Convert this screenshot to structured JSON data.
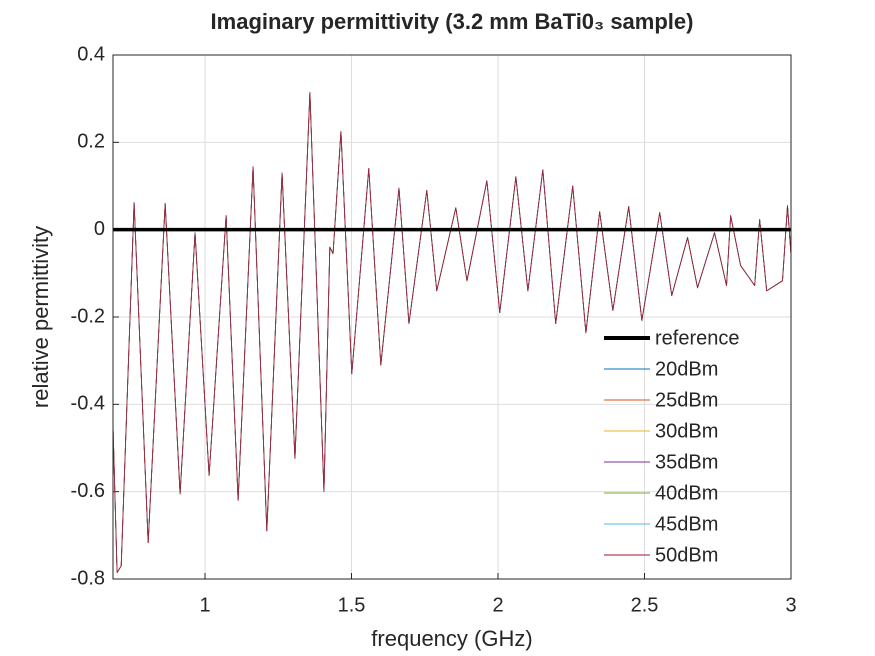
{
  "chart_data": {
    "type": "line",
    "title": "Imaginary permittivity (3.2 mm BaTi0₃ sample)",
    "x_label": "frequency (GHz)",
    "y_label": "relative permittivity",
    "xlim": [
      0.686,
      3
    ],
    "ylim": [
      -0.8,
      0.4
    ],
    "xticks": [
      1,
      1.5,
      2,
      2.5,
      3
    ],
    "yticks": [
      -0.8,
      -0.6,
      -0.4,
      -0.2,
      0,
      0.2,
      0.4
    ],
    "grid": true,
    "legend_position": "lower-right",
    "x": [
      0.686,
      0.7,
      0.714,
      0.758,
      0.806,
      0.864,
      0.915,
      0.966,
      1.014,
      1.072,
      1.113,
      1.164,
      1.211,
      1.263,
      1.307,
      1.334,
      1.358,
      1.406,
      1.426,
      1.437,
      1.464,
      1.501,
      1.559,
      1.6,
      1.662,
      1.696,
      1.757,
      1.791,
      1.856,
      1.894,
      1.962,
      2.006,
      2.061,
      2.102,
      2.153,
      2.197,
      2.255,
      2.3,
      2.347,
      2.392,
      2.446,
      2.491,
      2.552,
      2.593,
      2.647,
      2.681,
      2.739,
      2.78,
      2.794,
      2.828,
      2.876,
      2.893,
      2.917,
      2.971,
      2.988,
      3.0
    ],
    "series": [
      {
        "name": "reference",
        "color": "#000000",
        "width": 3.5,
        "values": [
          0,
          0,
          0,
          0,
          0,
          0,
          0,
          0,
          0,
          0,
          0,
          0,
          0,
          0,
          0,
          0,
          0,
          0,
          0,
          0,
          0,
          0,
          0,
          0,
          0,
          0,
          0,
          0,
          0,
          0,
          0,
          0,
          0,
          0,
          0,
          0,
          0,
          0,
          0,
          0,
          0,
          0,
          0,
          0,
          0,
          0,
          0,
          0,
          0,
          0,
          0,
          0,
          0,
          0,
          0,
          0
        ]
      },
      {
        "name": "20dBm",
        "color": "#0072BD",
        "width": 0.8,
        "values": [
          -0.45,
          -0.785,
          -0.77,
          0.062,
          -0.717,
          0.06,
          -0.605,
          -0.007,
          -0.563,
          0.032,
          -0.62,
          0.144,
          -0.69,
          0.13,
          -0.524,
          -0.08,
          0.314,
          -0.6,
          -0.04,
          -0.055,
          0.225,
          -0.33,
          0.14,
          -0.31,
          0.095,
          -0.215,
          0.09,
          -0.14,
          0.05,
          -0.117,
          0.112,
          -0.19,
          0.121,
          -0.14,
          0.137,
          -0.215,
          0.1,
          -0.236,
          0.041,
          -0.185,
          0.053,
          -0.208,
          0.039,
          -0.151,
          -0.018,
          -0.133,
          -0.007,
          -0.128,
          0.032,
          -0.082,
          -0.128,
          0.023,
          -0.14,
          -0.117,
          0.055,
          -0.057
        ]
      },
      {
        "name": "25dBm",
        "color": "#D95319",
        "width": 0.8,
        "values": [
          -0.45,
          -0.785,
          -0.77,
          0.062,
          -0.717,
          0.06,
          -0.605,
          -0.007,
          -0.563,
          0.032,
          -0.62,
          0.144,
          -0.69,
          0.13,
          -0.524,
          -0.08,
          0.314,
          -0.6,
          -0.04,
          -0.055,
          0.225,
          -0.33,
          0.14,
          -0.31,
          0.095,
          -0.215,
          0.09,
          -0.14,
          0.05,
          -0.117,
          0.112,
          -0.19,
          0.121,
          -0.14,
          0.137,
          -0.215,
          0.1,
          -0.236,
          0.041,
          -0.185,
          0.053,
          -0.208,
          0.039,
          -0.151,
          -0.018,
          -0.133,
          -0.007,
          -0.128,
          0.032,
          -0.082,
          -0.128,
          0.023,
          -0.14,
          -0.117,
          0.055,
          -0.057
        ]
      },
      {
        "name": "30dBm",
        "color": "#EDB120",
        "width": 0.8,
        "values": [
          -0.45,
          -0.785,
          -0.77,
          0.062,
          -0.717,
          0.06,
          -0.605,
          -0.007,
          -0.563,
          0.032,
          -0.62,
          0.144,
          -0.69,
          0.13,
          -0.524,
          -0.08,
          0.314,
          -0.6,
          -0.04,
          -0.055,
          0.225,
          -0.33,
          0.14,
          -0.31,
          0.095,
          -0.215,
          0.09,
          -0.14,
          0.05,
          -0.117,
          0.112,
          -0.19,
          0.121,
          -0.14,
          0.137,
          -0.215,
          0.1,
          -0.236,
          0.041,
          -0.185,
          0.053,
          -0.208,
          0.039,
          -0.151,
          -0.018,
          -0.133,
          -0.007,
          -0.128,
          0.032,
          -0.082,
          -0.128,
          0.023,
          -0.14,
          -0.117,
          0.055,
          -0.057
        ]
      },
      {
        "name": "35dBm",
        "color": "#7E2F8E",
        "width": 0.8,
        "values": [
          -0.45,
          -0.785,
          -0.77,
          0.062,
          -0.717,
          0.06,
          -0.605,
          -0.007,
          -0.563,
          0.032,
          -0.62,
          0.144,
          -0.69,
          0.13,
          -0.524,
          -0.08,
          0.314,
          -0.6,
          -0.04,
          -0.055,
          0.225,
          -0.33,
          0.14,
          -0.31,
          0.095,
          -0.215,
          0.09,
          -0.14,
          0.05,
          -0.117,
          0.112,
          -0.19,
          0.121,
          -0.14,
          0.137,
          -0.215,
          0.1,
          -0.236,
          0.041,
          -0.185,
          0.053,
          -0.208,
          0.039,
          -0.151,
          -0.018,
          -0.133,
          -0.007,
          -0.128,
          0.032,
          -0.082,
          -0.128,
          0.023,
          -0.14,
          -0.117,
          0.055,
          -0.057
        ]
      },
      {
        "name": "40dBm",
        "color": "#77AC30",
        "width": 0.8,
        "values": [
          -0.45,
          -0.785,
          -0.77,
          0.062,
          -0.717,
          0.06,
          -0.605,
          -0.007,
          -0.563,
          0.032,
          -0.62,
          0.144,
          -0.69,
          0.13,
          -0.524,
          -0.08,
          0.314,
          -0.6,
          -0.04,
          -0.055,
          0.225,
          -0.33,
          0.14,
          -0.31,
          0.095,
          -0.215,
          0.09,
          -0.14,
          0.05,
          -0.117,
          0.112,
          -0.19,
          0.121,
          -0.14,
          0.137,
          -0.215,
          0.1,
          -0.236,
          0.041,
          -0.185,
          0.053,
          -0.208,
          0.039,
          -0.151,
          -0.018,
          -0.133,
          -0.007,
          -0.128,
          0.032,
          -0.082,
          -0.128,
          0.023,
          -0.14,
          -0.117,
          0.055,
          -0.057
        ]
      },
      {
        "name": "45dBm",
        "color": "#4DBEEE",
        "width": 0.8,
        "values": [
          -0.45,
          -0.785,
          -0.77,
          0.062,
          -0.717,
          0.06,
          -0.605,
          -0.007,
          -0.563,
          0.032,
          -0.62,
          0.144,
          -0.69,
          0.13,
          -0.524,
          -0.08,
          0.314,
          -0.6,
          -0.04,
          -0.055,
          0.225,
          -0.33,
          0.14,
          -0.31,
          0.095,
          -0.215,
          0.09,
          -0.14,
          0.05,
          -0.117,
          0.112,
          -0.19,
          0.121,
          -0.14,
          0.137,
          -0.215,
          0.1,
          -0.236,
          0.041,
          -0.185,
          0.053,
          -0.208,
          0.039,
          -0.151,
          -0.018,
          -0.133,
          -0.007,
          -0.128,
          0.032,
          -0.082,
          -0.128,
          0.023,
          -0.14,
          -0.117,
          0.055,
          -0.057
        ]
      },
      {
        "name": "50dBm",
        "color": "#A2142F",
        "width": 0.8,
        "values": [
          -0.45,
          -0.785,
          -0.77,
          0.062,
          -0.717,
          0.06,
          -0.605,
          -0.007,
          -0.563,
          0.032,
          -0.62,
          0.144,
          -0.69,
          0.13,
          -0.524,
          -0.08,
          0.314,
          -0.6,
          -0.04,
          -0.055,
          0.225,
          -0.33,
          0.14,
          -0.31,
          0.095,
          -0.215,
          0.09,
          -0.14,
          0.05,
          -0.117,
          0.112,
          -0.19,
          0.121,
          -0.14,
          0.137,
          -0.215,
          0.1,
          -0.236,
          0.041,
          -0.185,
          0.053,
          -0.208,
          0.039,
          -0.151,
          -0.018,
          -0.133,
          -0.007,
          -0.128,
          0.032,
          -0.082,
          -0.128,
          0.023,
          -0.14,
          -0.117,
          0.055,
          -0.057
        ]
      }
    ]
  }
}
